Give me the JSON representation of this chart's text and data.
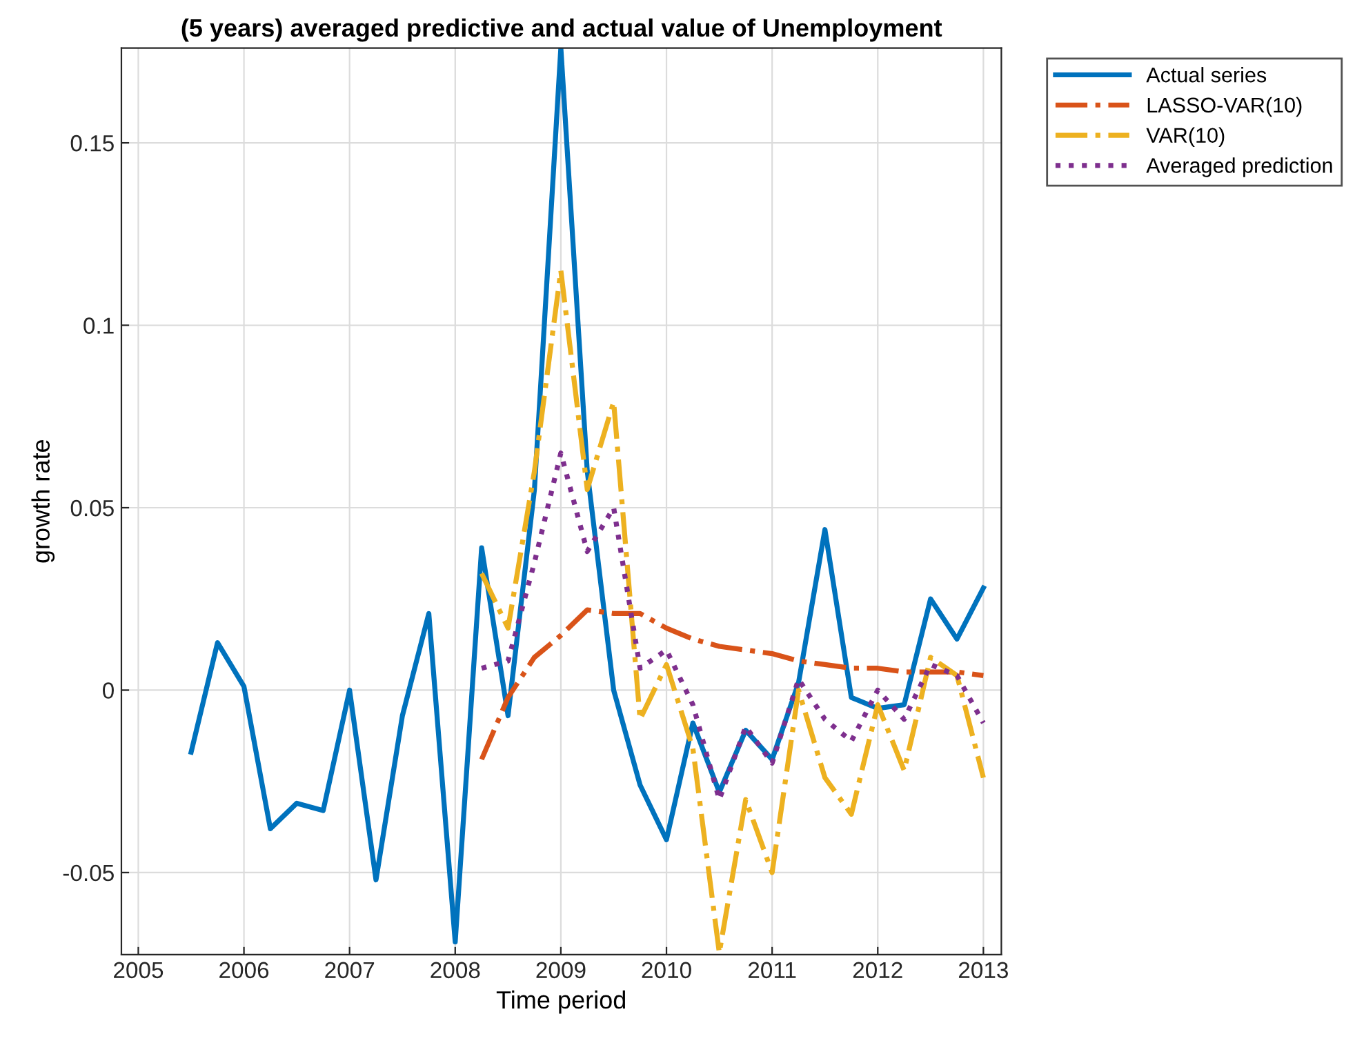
{
  "chart_data": {
    "type": "line",
    "title": "(5 years) averaged predictive and actual value of Unemployment",
    "xlabel": "Time period",
    "ylabel": "growth rate",
    "xlim": [
      2004.84,
      2013.17
    ],
    "xticks": [
      2005,
      2006,
      2007,
      2008,
      2009,
      2010,
      2011,
      2012,
      2013
    ],
    "ylim": [
      -0.0725,
      0.176
    ],
    "yticks": [
      -0.05,
      0,
      0.05,
      0.1,
      0.15
    ],
    "grid": true,
    "legend": "top right",
    "series": [
      {
        "name": "Actual series",
        "color": "#0072bd",
        "line_style": "solid",
        "x": [
          2005.5,
          2005.75,
          2006,
          2006.25,
          2006.5,
          2006.75,
          2007,
          2007.25,
          2007.5,
          2007.75,
          2008,
          2008.25,
          2008.5,
          2008.75,
          2009,
          2009.25,
          2009.5,
          2009.75,
          2010,
          2010.25,
          2010.5,
          2010.75,
          2011,
          2011.25,
          2011.5,
          2011.75,
          2012,
          2012.25,
          2012.5,
          2012.75,
          2013
        ],
        "values": [
          -0.017,
          0.013,
          0.001,
          -0.038,
          -0.031,
          -0.033,
          0.0,
          -0.052,
          -0.007,
          0.021,
          -0.069,
          0.039,
          -0.007,
          0.055,
          0.176,
          0.06,
          0.0,
          -0.026,
          -0.041,
          -0.009,
          -0.028,
          -0.011,
          -0.019,
          0.002,
          0.044,
          -0.002,
          -0.005,
          -0.004,
          0.025,
          0.014,
          0.028
        ]
      },
      {
        "name": "LASSO-VAR(10)",
        "color": "#d95319",
        "line_style": "dashed",
        "x": [
          2008.25,
          2008.5,
          2008.75,
          2009,
          2009.25,
          2009.5,
          2009.75,
          2010,
          2010.25,
          2010.5,
          2010.75,
          2011,
          2011.25,
          2011.5,
          2011.75,
          2012,
          2012.25,
          2012.5,
          2012.75,
          2013
        ],
        "values": [
          -0.019,
          -0.002,
          0.009,
          0.015,
          0.022,
          0.021,
          0.021,
          0.017,
          0.014,
          0.012,
          0.011,
          0.01,
          0.008,
          0.007,
          0.006,
          0.006,
          0.005,
          0.005,
          0.005,
          0.004
        ]
      },
      {
        "name": "VAR(10)",
        "color": "#edb120",
        "line_style": "dashed",
        "x": [
          2008.25,
          2008.5,
          2008.75,
          2009,
          2009.25,
          2009.5,
          2009.75,
          2010,
          2010.25,
          2010.5,
          2010.75,
          2011,
          2011.25,
          2011.5,
          2011.75,
          2012,
          2012.25,
          2012.5,
          2012.75,
          2013
        ],
        "values": [
          0.032,
          0.017,
          0.06,
          0.115,
          0.055,
          0.079,
          -0.008,
          0.007,
          -0.016,
          -0.072,
          -0.03,
          -0.05,
          0.0,
          -0.024,
          -0.034,
          -0.004,
          -0.022,
          0.009,
          0.004,
          -0.024
        ]
      },
      {
        "name": "Averaged prediction",
        "color": "#7e2f8e",
        "line_style": "dotted",
        "x": [
          2008.25,
          2008.5,
          2008.75,
          2009,
          2009.25,
          2009.5,
          2009.75,
          2010,
          2010.25,
          2010.5,
          2010.75,
          2011,
          2011.25,
          2011.5,
          2011.75,
          2012,
          2012.25,
          2012.5,
          2012.75,
          2013
        ],
        "values": [
          0.006,
          0.008,
          0.035,
          0.065,
          0.038,
          0.05,
          0.006,
          0.011,
          -0.004,
          -0.03,
          -0.01,
          -0.02,
          0.003,
          -0.008,
          -0.014,
          0.0,
          -0.008,
          0.007,
          0.004,
          -0.009
        ]
      }
    ]
  }
}
